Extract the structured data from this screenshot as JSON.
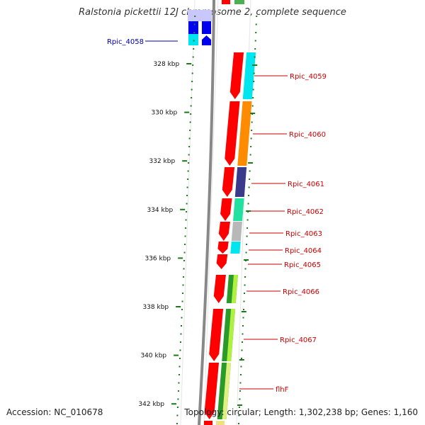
{
  "title": "Ralstonia pickettii 12J chromosome 2, complete sequence",
  "footer": {
    "accession": "Accession: NC_010678",
    "info": "Topology: circular; Length: 1,302,238 bp; Genes: 1,160"
  },
  "scale_labels": [
    {
      "text": "328 kbp",
      "value": 328
    },
    {
      "text": "330 kbp",
      "value": 330
    },
    {
      "text": "332 kbp",
      "value": 332
    },
    {
      "text": "334 kbp",
      "value": 334
    },
    {
      "text": "336 kbp",
      "value": 336
    },
    {
      "text": "338 kbp",
      "value": 338
    },
    {
      "text": "340 kbp",
      "value": 340
    },
    {
      "text": "342 kbp",
      "value": 342
    }
  ],
  "gene_labels": [
    {
      "text": "Rpic_4058",
      "color": "#0000aa",
      "side": "left"
    },
    {
      "text": "Rpic_4059",
      "color": "#cc0000",
      "side": "right"
    },
    {
      "text": "Rpic_4060",
      "color": "#cc0000",
      "side": "right"
    },
    {
      "text": "Rpic_4061",
      "color": "#cc0000",
      "side": "right"
    },
    {
      "text": "Rpic_4062",
      "color": "#cc0000",
      "side": "right"
    },
    {
      "text": "Rpic_4063",
      "color": "#cc0000",
      "side": "right"
    },
    {
      "text": "Rpic_4064",
      "color": "#cc0000",
      "side": "right"
    },
    {
      "text": "Rpic_4065",
      "color": "#cc0000",
      "side": "right"
    },
    {
      "text": "Rpic_4066",
      "color": "#cc0000",
      "side": "right"
    },
    {
      "text": "Rpic_4067",
      "color": "#cc0000",
      "side": "right"
    },
    {
      "text": "flhF",
      "color": "#cc0000",
      "side": "right"
    }
  ],
  "colors": {
    "cds": "#ff0000",
    "tick": "#1a7a1a",
    "backbone": "#888888",
    "cyan": "#00e5ee",
    "orange": "#ff8c00",
    "navy": "#3a3a8c",
    "teal": "#22e0a0",
    "gray": "#b8b8b8",
    "green": "#2a9a2a",
    "lime": "#b0f040",
    "blue": "#0000ee",
    "lavender": "#c8c8ff"
  }
}
